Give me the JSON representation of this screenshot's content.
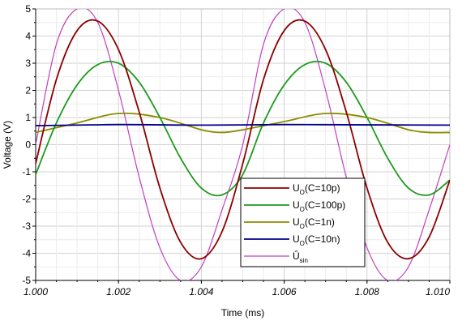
{
  "chart_data": {
    "type": "line",
    "xlabel": "Time (ms)",
    "ylabel": "Voltage (V)",
    "xlim": [
      1.0,
      1.01
    ],
    "ylim": [
      -5,
      5
    ],
    "x_ticks": [
      "1.000",
      "1.002",
      "1.004",
      "1.006",
      "1.008",
      "1.010"
    ],
    "y_ticks": [
      "5",
      "4",
      "3",
      "2",
      "1",
      "0",
      "-1",
      "-2",
      "-3",
      "-4",
      "-5"
    ],
    "grid": true,
    "legend_position": "bottom-center",
    "series": [
      {
        "name": "UO(C=10p)",
        "label_main": "U",
        "label_sub": "O",
        "label_rest": "(C=10p)",
        "color": "#8b0000",
        "x": [
          1.0,
          1.0005,
          1.001,
          1.0015,
          1.002,
          1.0025,
          1.003,
          1.0035,
          1.004,
          1.0045,
          1.005,
          1.0055,
          1.006,
          1.0065,
          1.007,
          1.0075,
          1.008,
          1.0085,
          1.009,
          1.0095,
          1.01
        ],
        "values": [
          -0.7,
          2.4,
          4.2,
          4.55,
          3.5,
          1.2,
          -1.6,
          -3.6,
          -4.2,
          -3.2,
          -0.7,
          2.4,
          4.2,
          4.55,
          3.5,
          1.2,
          -1.6,
          -3.6,
          -4.2,
          -3.4,
          -1.3
        ]
      },
      {
        "name": "UO(C=100p)",
        "label_main": "U",
        "label_sub": "O",
        "label_rest": "(C=100p)",
        "color": "#1e9a1e",
        "x": [
          1.0,
          1.0005,
          1.001,
          1.0015,
          1.002,
          1.0025,
          1.003,
          1.0035,
          1.004,
          1.0045,
          1.005,
          1.0055,
          1.006,
          1.0065,
          1.007,
          1.0075,
          1.008,
          1.0085,
          1.009,
          1.0095,
          1.01
        ],
        "values": [
          -1.1,
          0.8,
          2.2,
          2.95,
          3.0,
          2.3,
          1.0,
          -0.5,
          -1.6,
          -1.85,
          -1.1,
          0.8,
          2.2,
          2.95,
          3.0,
          2.3,
          1.0,
          -0.5,
          -1.6,
          -1.85,
          -1.3
        ]
      },
      {
        "name": "UO(C=1n)",
        "label_main": "U",
        "label_sub": "O",
        "label_rest": "(C=1n)",
        "color": "#8c8c00",
        "x": [
          1.0,
          1.001,
          1.002,
          1.003,
          1.004,
          1.0045,
          1.005,
          1.006,
          1.007,
          1.008,
          1.009,
          1.0095,
          1.01
        ],
        "values": [
          0.45,
          0.8,
          1.15,
          1.0,
          0.55,
          0.45,
          0.55,
          0.85,
          1.15,
          1.0,
          0.55,
          0.45,
          0.45
        ]
      },
      {
        "name": "UO(C=10n)",
        "label_main": "U",
        "label_sub": "O",
        "label_rest": "(C=10n)",
        "color": "#00008b",
        "x": [
          1.0,
          1.002,
          1.004,
          1.006,
          1.008,
          1.01
        ],
        "values": [
          0.7,
          0.74,
          0.72,
          0.74,
          0.73,
          0.72
        ]
      },
      {
        "name": "Ûsin",
        "label_main": "Û",
        "label_sub": "sin",
        "label_rest": "",
        "color": "#c040c0",
        "x": [
          1.0,
          1.0005,
          1.001,
          1.0015,
          1.002,
          1.0025,
          1.003,
          1.0035,
          1.004,
          1.0045,
          1.005,
          1.0055,
          1.006,
          1.0065,
          1.007,
          1.0075,
          1.008,
          1.0085,
          1.009,
          1.0095,
          1.01
        ],
        "values": [
          0.0,
          3.7,
          5.0,
          4.5,
          2.0,
          -1.2,
          -3.8,
          -5.0,
          -4.5,
          -2.4,
          0.0,
          3.7,
          5.0,
          4.5,
          2.0,
          -1.2,
          -3.8,
          -5.0,
          -4.5,
          -2.4,
          0.0
        ]
      }
    ]
  }
}
